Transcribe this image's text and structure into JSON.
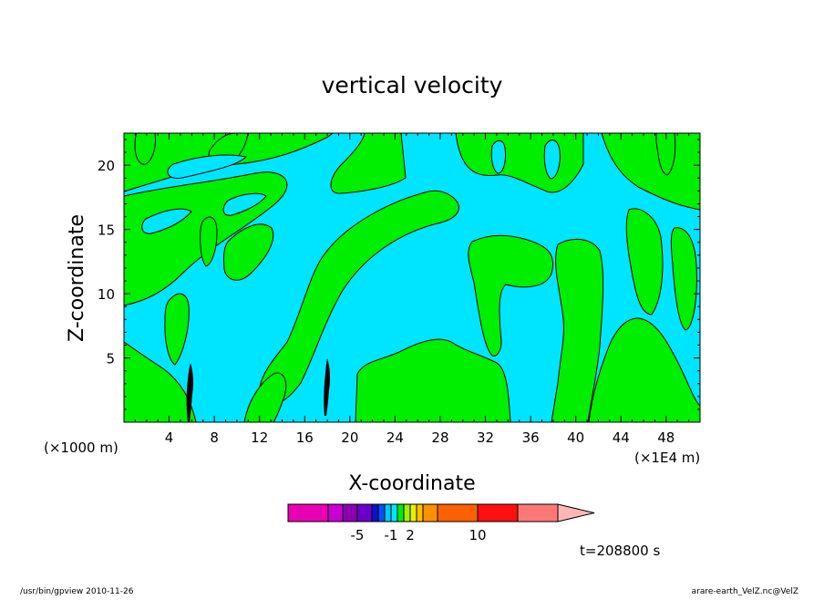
{
  "chart_data": {
    "type": "contour",
    "title": "vertical velocity",
    "xlabel": "X-coordinate",
    "ylabel": "Z-coordinate",
    "x_unit_left": "(×1000 m)",
    "x_unit_right": "(×1E4 m)",
    "x_ticks": [
      "4",
      "8",
      "12",
      "16",
      "20",
      "24",
      "28",
      "32",
      "36",
      "40",
      "44",
      "48"
    ],
    "y_ticks": [
      "5",
      "10",
      "15",
      "20"
    ],
    "xlim": [
      0,
      51
    ],
    "ylim": [
      0,
      22.5
    ],
    "fill_colors": {
      "negative_small": "#00e5ff",
      "positive_small": "#00ee00",
      "extreme": "#000000"
    },
    "colorbar": {
      "levels": [
        -10,
        -8,
        -6,
        -5,
        -4,
        -3,
        -2,
        -1,
        0,
        1,
        2,
        3,
        4,
        5,
        10,
        15,
        20
      ],
      "colors": [
        "#e900b5",
        "#c800d2",
        "#8a00b0",
        "#6a00c8",
        "#1010cc",
        "#0050ff",
        "#00c8ff",
        "#00e5ff",
        "#00ee00",
        "#a0f000",
        "#e8f000",
        "#ffc000",
        "#ff9000",
        "#ff6000",
        "#ff1010",
        "#ff7878",
        "#ffb6b6"
      ],
      "tick_labels": [
        "-5",
        "-1",
        "2",
        "10"
      ]
    },
    "time_label": "t=208800 s"
  },
  "footer": {
    "left": "/usr/bin/gpview  2010-11-26",
    "right": "arare-earth_VelZ.nc@VelZ"
  }
}
